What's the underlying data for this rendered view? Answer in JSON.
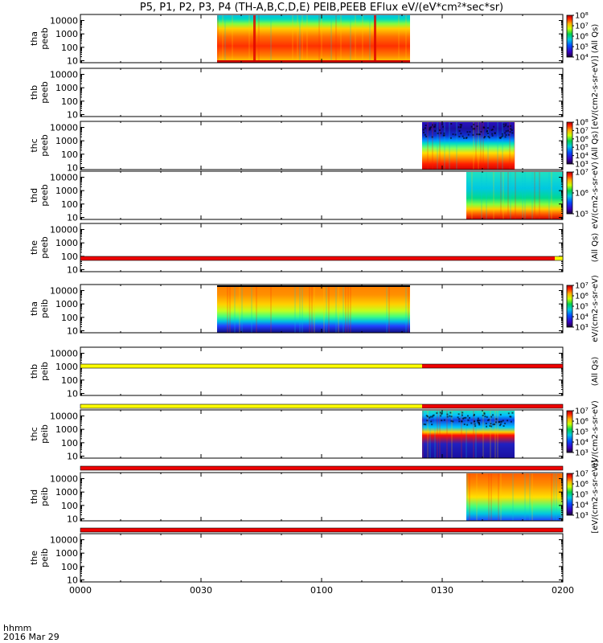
{
  "title": "P5, P1, P2, P3, P4 (TH-A,B,C,D,E) PEIB,PEEB EFlux eV/(eV*cm²*sec*sr)",
  "time_axis": {
    "prefix_line1": "hhmm",
    "prefix_line2": "2016 Mar 29",
    "ticks": [
      "0000",
      "0030",
      "0100",
      "0130",
      "0200"
    ]
  },
  "colors": {
    "flag_red": "#ee0000",
    "flag_yellow": "#ffff00",
    "black": "#000000"
  },
  "chart_data": {
    "type": "heatmap",
    "x_units": "hhmm",
    "x_range": [
      "00:00",
      "02:00"
    ],
    "y_scale": "log",
    "y_ticks": [
      "10",
      "100",
      "1000",
      "10000"
    ],
    "panels": [
      {
        "ylabel": [
          "tha",
          "peeb"
        ],
        "data_start": "00:34",
        "data_end": "01:22",
        "profile": "electron_high",
        "cbar": [
          "10⁴",
          "10⁵",
          "10⁶",
          "10⁷",
          "10⁸"
        ]
      },
      {
        "ylabel": [
          "thb",
          "peeb"
        ],
        "data_start": null,
        "data_end": null,
        "profile": "none",
        "cbar": []
      },
      {
        "ylabel": [
          "thc",
          "peeb"
        ],
        "data_start": "01:25",
        "data_end": "01:48",
        "profile": "electron_low",
        "cbar": [
          "10³",
          "10⁴",
          "10⁵",
          "10⁶",
          "10⁷",
          "10⁸"
        ]
      },
      {
        "ylabel": [
          "thd",
          "peeb"
        ],
        "data_start": "01:36",
        "data_end": "02:00",
        "profile": "electron_mixed",
        "cbar": [
          "10⁵",
          "10⁶",
          "10⁷"
        ]
      },
      {
        "ylabel": [
          "the",
          "peeb"
        ],
        "data_start": null,
        "data_end": null,
        "profile": "none",
        "cbar": []
      },
      {
        "ylabel": [
          "tha",
          "peib"
        ],
        "data_start": "00:34",
        "data_end": "01:22",
        "profile": "ion_high",
        "cbar": [
          "10³",
          "10⁴",
          "10⁵",
          "10⁶",
          "10⁷"
        ]
      },
      {
        "ylabel": [
          "thb",
          "peib"
        ],
        "data_start": null,
        "data_end": null,
        "profile": "none",
        "cbar": []
      },
      {
        "ylabel": [
          "thc",
          "peib"
        ],
        "data_start": "01:25",
        "data_end": "01:48",
        "profile": "ion_low",
        "cbar": [
          "10³",
          "10⁴",
          "10⁵",
          "10⁶",
          "10⁷"
        ]
      },
      {
        "ylabel": [
          "thd",
          "peib"
        ],
        "data_start": "01:36",
        "data_end": "02:00",
        "profile": "ion_mixed",
        "cbar": [
          "10³",
          "10⁴",
          "10⁵",
          "10⁶",
          "10⁷"
        ]
      },
      {
        "ylabel": [
          "the",
          "peib"
        ],
        "data_start": null,
        "data_end": null,
        "profile": "none",
        "cbar": []
      }
    ],
    "flag_bars": [
      {
        "after_panel": 4,
        "segments": [
          {
            "start": "00:00",
            "end": "01:58",
            "color": "red"
          },
          {
            "start": "01:58",
            "end": "02:00",
            "color": "yellow"
          }
        ]
      },
      {
        "after_panel": 5,
        "segments": [
          {
            "start": "00:00",
            "end": "01:25",
            "color": "yellow"
          },
          {
            "start": "01:25",
            "end": "02:00",
            "color": "red"
          }
        ]
      },
      {
        "after_panel": 6,
        "segments": [
          {
            "start": "00:00",
            "end": "01:25",
            "color": "yellow"
          },
          {
            "start": "01:25",
            "end": "02:00",
            "color": "red"
          }
        ]
      },
      {
        "after_panel": 7,
        "segments": [
          {
            "start": "00:00",
            "end": "02:00",
            "color": "red"
          }
        ]
      },
      {
        "after_panel": 8,
        "segments": [
          {
            "start": "00:00",
            "end": "02:00",
            "color": "red"
          }
        ]
      }
    ],
    "colorbar_labels": [
      {
        "panel": 0,
        "text": "(All Qs)"
      },
      {
        "panel": 1,
        "text": "[eV/(cm2-s-sr-eV)]"
      },
      {
        "panel": 2,
        "text": "(All Qs)"
      },
      {
        "panel": 3,
        "text": "eV/(cm2-s-sr-eV)"
      },
      {
        "panel": 4,
        "text": "(All Qs)"
      },
      {
        "panel": 5,
        "text": "eV/(cm2-s-sr-eV)"
      },
      {
        "panel": 6,
        "text": "(All Qs)"
      },
      {
        "panel": 7,
        "text": "eV/(cm2-s-sr-eV)"
      },
      {
        "panel": 8,
        "text": "[eV/(cm2-s-sr-eV)]"
      }
    ]
  }
}
